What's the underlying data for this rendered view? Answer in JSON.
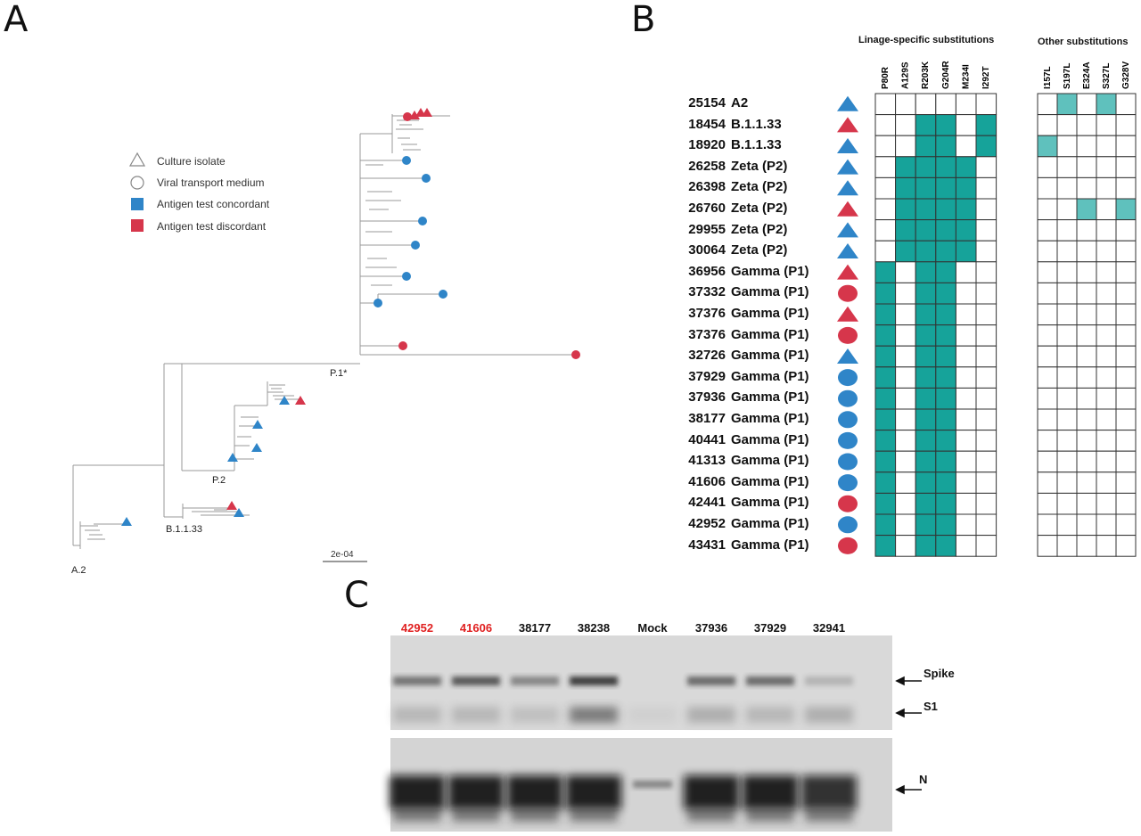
{
  "panels": {
    "a": "A",
    "b": "B",
    "c": "C"
  },
  "legend": {
    "items": [
      {
        "label": "Culture isolate",
        "shape": "triangle",
        "color": "#ffffff"
      },
      {
        "label": "Viral transport medium",
        "shape": "circle",
        "color": "#ffffff"
      },
      {
        "label": "Antigen test concordant",
        "shape": "square",
        "color": "#2f85c8"
      },
      {
        "label": "Antigen test discordant",
        "shape": "square",
        "color": "#d6364b"
      }
    ]
  },
  "tree": {
    "labels": {
      "a2": "A.2",
      "b1133": "B.1.1.33",
      "p2": "P.2",
      "p1": "P.1*"
    },
    "scale_label": "2e-04"
  },
  "colors": {
    "concordant": "#2f85c8",
    "discordant": "#d6364b",
    "lineage_fill": "#16a39a",
    "other_fill": "#5fc1bd",
    "blot_bg": "#d9d9d9"
  },
  "heatmap": {
    "lineage_title": "Linage-specific substitutions",
    "other_title": "Other substitutions",
    "lineage_columns": [
      "P80R",
      "A129S",
      "R203K",
      "G204R",
      "M234I",
      "I292T"
    ],
    "other_columns": [
      "I157L",
      "S197L",
      "E324A",
      "S327L",
      "G328V"
    ],
    "rows": [
      {
        "id": "25154",
        "lineage": "A2",
        "marker": "triangle",
        "status": "concordant",
        "lin": [
          0,
          0,
          0,
          0,
          0,
          0
        ],
        "oth": [
          0,
          1,
          0,
          1,
          0
        ]
      },
      {
        "id": "18454",
        "lineage": "B.1.1.33",
        "marker": "triangle",
        "status": "discordant",
        "lin": [
          0,
          0,
          1,
          1,
          0,
          1
        ],
        "oth": [
          0,
          0,
          0,
          0,
          0
        ]
      },
      {
        "id": "18920",
        "lineage": "B.1.1.33",
        "marker": "triangle",
        "status": "concordant",
        "lin": [
          0,
          0,
          1,
          1,
          0,
          1
        ],
        "oth": [
          1,
          0,
          0,
          0,
          0
        ]
      },
      {
        "id": "26258",
        "lineage": "Zeta (P2)",
        "marker": "triangle",
        "status": "concordant",
        "lin": [
          0,
          1,
          1,
          1,
          1,
          0
        ],
        "oth": [
          0,
          0,
          0,
          0,
          0
        ]
      },
      {
        "id": "26398",
        "lineage": "Zeta (P2)",
        "marker": "triangle",
        "status": "concordant",
        "lin": [
          0,
          1,
          1,
          1,
          1,
          0
        ],
        "oth": [
          0,
          0,
          0,
          0,
          0
        ]
      },
      {
        "id": "26760",
        "lineage": "Zeta (P2)",
        "marker": "triangle",
        "status": "discordant",
        "lin": [
          0,
          1,
          1,
          1,
          1,
          0
        ],
        "oth": [
          0,
          0,
          1,
          0,
          1
        ]
      },
      {
        "id": "29955",
        "lineage": "Zeta (P2)",
        "marker": "triangle",
        "status": "concordant",
        "lin": [
          0,
          1,
          1,
          1,
          1,
          0
        ],
        "oth": [
          0,
          0,
          0,
          0,
          0
        ]
      },
      {
        "id": "30064",
        "lineage": "Zeta (P2)",
        "marker": "triangle",
        "status": "concordant",
        "lin": [
          0,
          1,
          1,
          1,
          1,
          0
        ],
        "oth": [
          0,
          0,
          0,
          0,
          0
        ]
      },
      {
        "id": "36956",
        "lineage": "Gamma (P1)",
        "marker": "triangle",
        "status": "discordant",
        "lin": [
          1,
          0,
          1,
          1,
          0,
          0
        ],
        "oth": [
          0,
          0,
          0,
          0,
          0
        ]
      },
      {
        "id": "37332",
        "lineage": "Gamma (P1)",
        "marker": "circle",
        "status": "discordant",
        "lin": [
          1,
          0,
          1,
          1,
          0,
          0
        ],
        "oth": [
          0,
          0,
          0,
          0,
          0
        ]
      },
      {
        "id": "37376",
        "lineage": "Gamma (P1)",
        "marker": "triangle",
        "status": "discordant",
        "lin": [
          1,
          0,
          1,
          1,
          0,
          0
        ],
        "oth": [
          0,
          0,
          0,
          0,
          0
        ]
      },
      {
        "id": "37376",
        "lineage": "Gamma (P1)",
        "marker": "circle",
        "status": "discordant",
        "lin": [
          1,
          0,
          1,
          1,
          0,
          0
        ],
        "oth": [
          0,
          0,
          0,
          0,
          0
        ]
      },
      {
        "id": "32726",
        "lineage": "Gamma (P1)",
        "marker": "triangle",
        "status": "concordant",
        "lin": [
          1,
          0,
          1,
          1,
          0,
          0
        ],
        "oth": [
          0,
          0,
          0,
          0,
          0
        ]
      },
      {
        "id": "37929",
        "lineage": "Gamma (P1)",
        "marker": "circle",
        "status": "concordant",
        "lin": [
          1,
          0,
          1,
          1,
          0,
          0
        ],
        "oth": [
          0,
          0,
          0,
          0,
          0
        ]
      },
      {
        "id": "37936",
        "lineage": "Gamma (P1)",
        "marker": "circle",
        "status": "concordant",
        "lin": [
          1,
          0,
          1,
          1,
          0,
          0
        ],
        "oth": [
          0,
          0,
          0,
          0,
          0
        ]
      },
      {
        "id": "38177",
        "lineage": "Gamma (P1)",
        "marker": "circle",
        "status": "concordant",
        "lin": [
          1,
          0,
          1,
          1,
          0,
          0
        ],
        "oth": [
          0,
          0,
          0,
          0,
          0
        ]
      },
      {
        "id": "40441",
        "lineage": "Gamma (P1)",
        "marker": "circle",
        "status": "concordant",
        "lin": [
          1,
          0,
          1,
          1,
          0,
          0
        ],
        "oth": [
          0,
          0,
          0,
          0,
          0
        ]
      },
      {
        "id": "41313",
        "lineage": "Gamma (P1)",
        "marker": "circle",
        "status": "concordant",
        "lin": [
          1,
          0,
          1,
          1,
          0,
          0
        ],
        "oth": [
          0,
          0,
          0,
          0,
          0
        ]
      },
      {
        "id": "41606",
        "lineage": "Gamma (P1)",
        "marker": "circle",
        "status": "concordant",
        "lin": [
          1,
          0,
          1,
          1,
          0,
          0
        ],
        "oth": [
          0,
          0,
          0,
          0,
          0
        ]
      },
      {
        "id": "42441",
        "lineage": "Gamma (P1)",
        "marker": "circle",
        "status": "discordant",
        "lin": [
          1,
          0,
          1,
          1,
          0,
          0
        ],
        "oth": [
          0,
          0,
          0,
          0,
          0
        ]
      },
      {
        "id": "42952",
        "lineage": "Gamma (P1)",
        "marker": "circle",
        "status": "concordant",
        "lin": [
          1,
          0,
          1,
          1,
          0,
          0
        ],
        "oth": [
          0,
          0,
          0,
          0,
          0
        ]
      },
      {
        "id": "43431",
        "lineage": "Gamma (P1)",
        "marker": "circle",
        "status": "discordant",
        "lin": [
          1,
          0,
          1,
          1,
          0,
          0
        ],
        "oth": [
          0,
          0,
          0,
          0,
          0
        ]
      }
    ]
  },
  "blot": {
    "lanes": [
      {
        "label": "42952",
        "color": "#e02020"
      },
      {
        "label": "41606",
        "color": "#e02020"
      },
      {
        "label": "38177",
        "color": "#111111"
      },
      {
        "label": "38238",
        "color": "#111111"
      },
      {
        "label": "Mock",
        "color": "#111111"
      },
      {
        "label": "37936",
        "color": "#111111"
      },
      {
        "label": "37929",
        "color": "#111111"
      },
      {
        "label": "32941",
        "color": "#111111"
      }
    ],
    "bands": {
      "spike": "Spike",
      "s1": "S1",
      "n": "N"
    }
  }
}
